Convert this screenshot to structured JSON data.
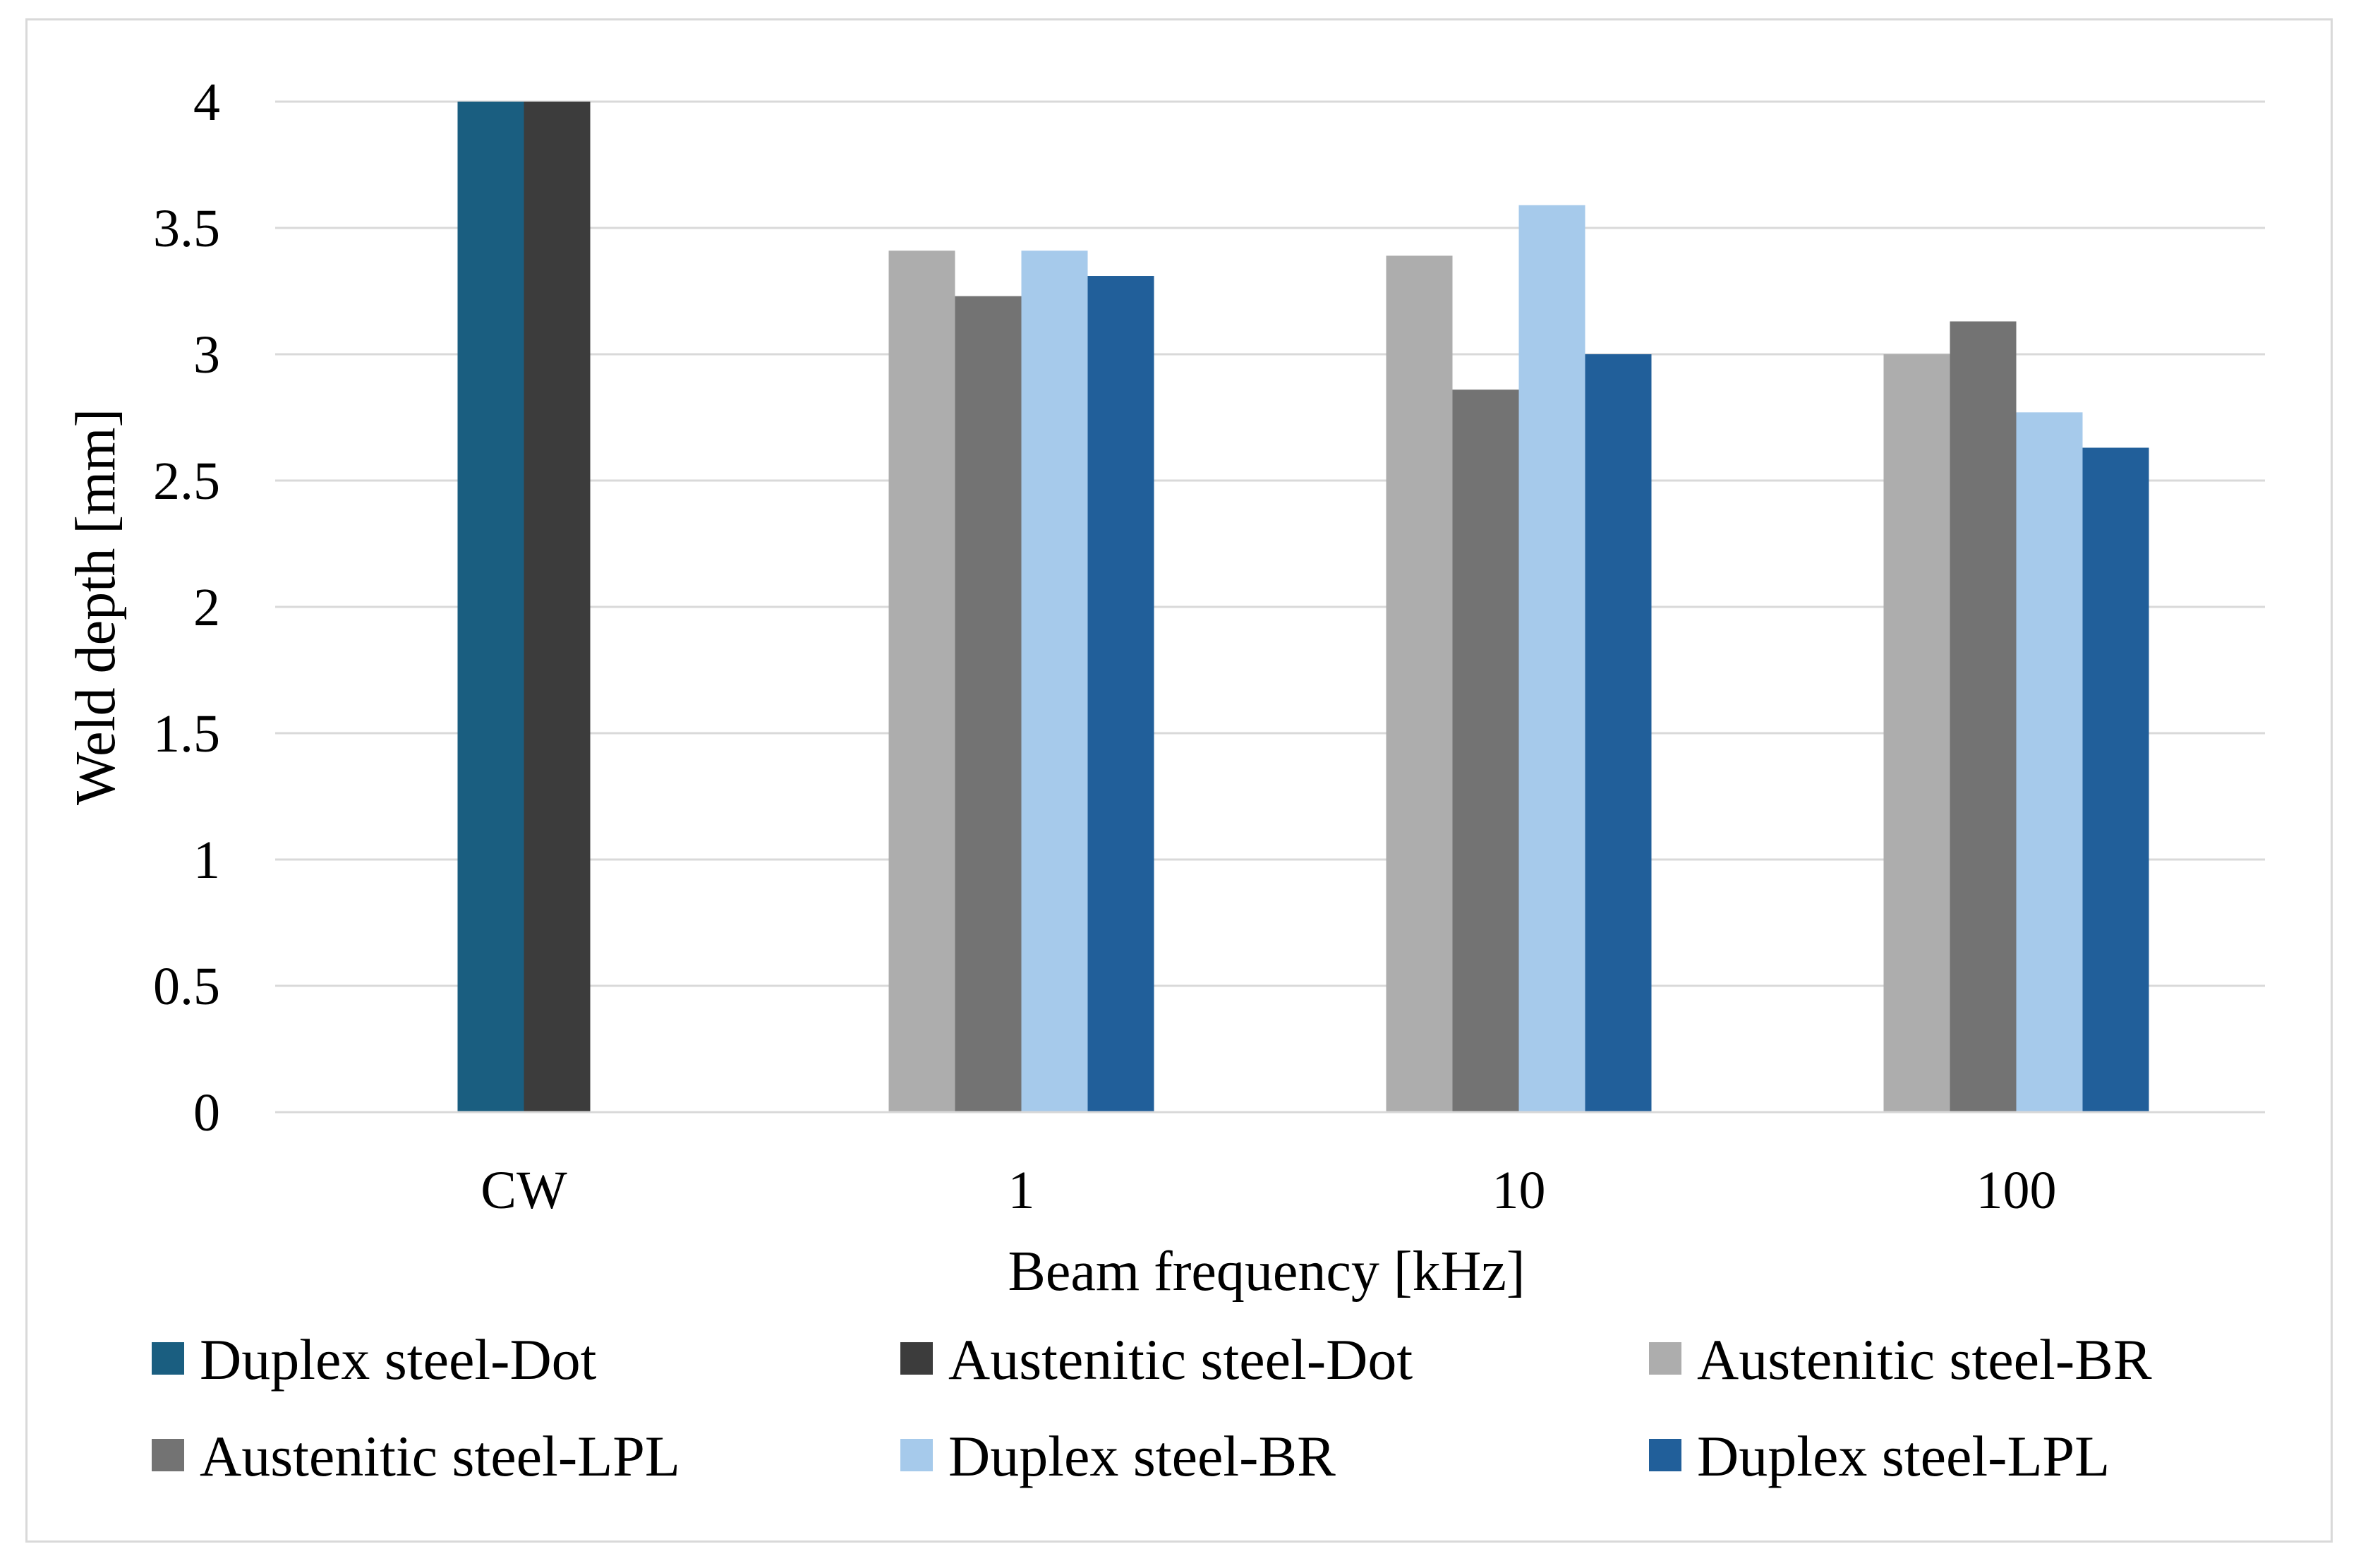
{
  "chart_data": {
    "type": "bar",
    "title": "",
    "xlabel": "Beam frequency [kHz]",
    "ylabel": "Weld depth [mm]",
    "ylim": [
      0,
      4
    ],
    "yticks": [
      0,
      0.5,
      1,
      1.5,
      2,
      2.5,
      3,
      3.5,
      4
    ],
    "ytick_labels": [
      "0",
      "0.5",
      "1",
      "1.5",
      "2",
      "2.5",
      "3",
      "3.5",
      "4"
    ],
    "grid": true,
    "legend_position": "bottom",
    "categories": [
      "CW",
      "1",
      "10",
      "100"
    ],
    "series": [
      {
        "name": "Duplex steel-Dot",
        "color": "#1a5e80",
        "values": [
          4,
          null,
          null,
          null
        ]
      },
      {
        "name": "Austenitic steel-Dot",
        "color": "#3c3c3c",
        "values": [
          4,
          null,
          null,
          null
        ]
      },
      {
        "name": "Austenitic steel-BR",
        "color": "#adadad",
        "values": [
          null,
          3.41,
          3.39,
          3.0
        ]
      },
      {
        "name": "Austenitic steel-LPL",
        "color": "#737373",
        "values": [
          null,
          3.23,
          2.86,
          3.13
        ]
      },
      {
        "name": "Duplex steel-BR",
        "color": "#a6caeb",
        "values": [
          null,
          3.41,
          3.59,
          2.77
        ]
      },
      {
        "name": "Duplex steel-LPL",
        "color": "#215f9a",
        "values": [
          null,
          3.31,
          3.0,
          2.63
        ]
      }
    ]
  }
}
